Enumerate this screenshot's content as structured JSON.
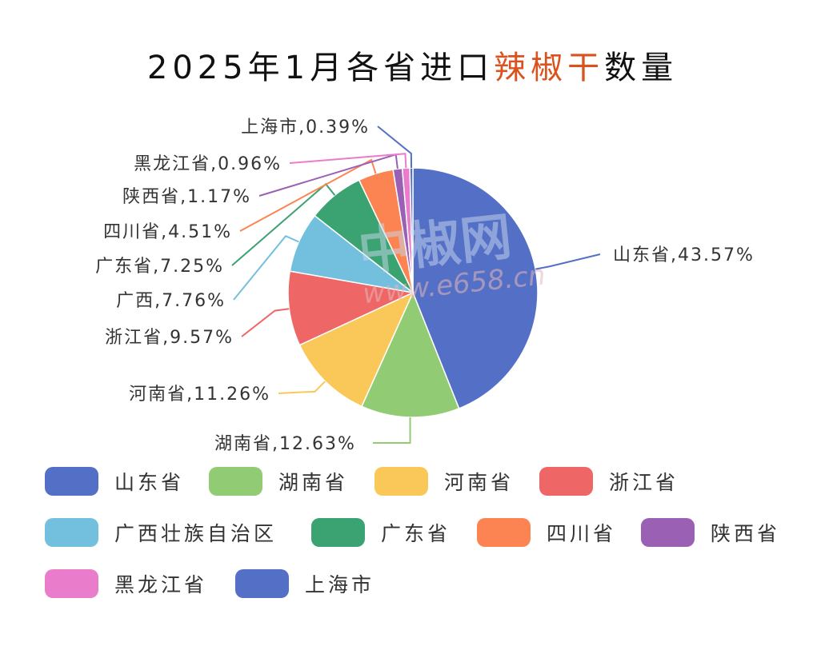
{
  "title": {
    "prefix": "2025年1月各省进口",
    "highlight": "辣椒干",
    "suffix": "数量",
    "highlight_color": "#d9531e"
  },
  "watermark": {
    "text": "中椒网",
    "url": "www.e658.cn"
  },
  "chart_data": {
    "type": "pie",
    "title": "2025年1月各省进口辣椒干数量",
    "slices": [
      {
        "name": "山东省",
        "value": 43.57,
        "label": "山东省,43.57%",
        "color": "#5470c6"
      },
      {
        "name": "湖南省",
        "value": 12.63,
        "label": "湖南省,12.63%",
        "color": "#91cc75"
      },
      {
        "name": "河南省",
        "value": 11.26,
        "label": "河南省,11.26%",
        "color": "#fac858"
      },
      {
        "name": "浙江省",
        "value": 9.57,
        "label": "浙江省,9.57%",
        "color": "#ee6666"
      },
      {
        "name": "广西壮族自治区",
        "value": 7.76,
        "label": "广西,7.76%",
        "color": "#73c0de"
      },
      {
        "name": "广东省",
        "value": 7.25,
        "label": "广东省,7.25%",
        "color": "#3ba272"
      },
      {
        "name": "四川省",
        "value": 4.51,
        "label": "四川省,4.51%",
        "color": "#fc8452"
      },
      {
        "name": "陕西省",
        "value": 1.17,
        "label": "陕西省,1.17%",
        "color": "#9a60b4"
      },
      {
        "name": "黑龙江省",
        "value": 0.96,
        "label": "黑龙江省,0.96%",
        "color": "#ea7ccc"
      },
      {
        "name": "上海市",
        "value": 0.39,
        "label": "上海市,0.39%",
        "color": "#5470c6"
      }
    ],
    "unit": "%",
    "start_angle": "top, clockwise",
    "legend": {
      "placement": "bottom",
      "entries": [
        "山东省",
        "湖南省",
        "河南省",
        "浙江省",
        "广西壮族自治区",
        "广东省",
        "四川省",
        "陕西省",
        "黑龙江省",
        "上海市"
      ]
    }
  }
}
